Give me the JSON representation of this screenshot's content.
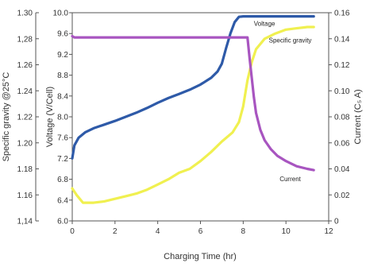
{
  "chart_data": {
    "type": "line",
    "xlabel": "Charging Time (hr)",
    "xlim": [
      0,
      12
    ],
    "x_ticks": [
      0,
      2,
      4,
      6,
      8,
      10,
      12
    ],
    "grid": false,
    "axes": {
      "specific_gravity": {
        "label": "Specific gravity @25°C",
        "position": "left-outer",
        "range": [
          1.14,
          1.3
        ],
        "ticks": [
          "1,14",
          "1.16",
          "1.18",
          "1.20",
          "1.22",
          "1.24",
          "1.26",
          "1,28",
          "1.30"
        ]
      },
      "voltage": {
        "label": "Voltage (V/Cell)",
        "position": "left-inner",
        "range": [
          6.0,
          10.0
        ],
        "ticks": [
          "6.0",
          "6.4",
          "6.8",
          "7.2",
          "7.6",
          "8.0",
          "8.4",
          "8.8",
          "9.2",
          "9.6",
          "10.0"
        ]
      },
      "current": {
        "label": "Current (C₅ A)",
        "position": "right",
        "range": [
          0,
          0.16
        ],
        "ticks": [
          "0",
          "0.02",
          "0.04",
          "0.06",
          "0.08",
          "0.10",
          "0.12",
          "0.14",
          "0.16"
        ]
      }
    },
    "series": [
      {
        "name": "Voltage",
        "axis": "voltage",
        "color": "#2e5aa8",
        "x": [
          0,
          0.1,
          0.3,
          0.6,
          1,
          1.5,
          2,
          2.5,
          3,
          3.5,
          4,
          4.5,
          5,
          5.5,
          6,
          6.5,
          6.8,
          7,
          7.2,
          7.4,
          7.6,
          7.8,
          8,
          9,
          10,
          11.3
        ],
        "y": [
          7.2,
          7.45,
          7.6,
          7.7,
          7.78,
          7.85,
          7.92,
          8.0,
          8.08,
          8.17,
          8.27,
          8.36,
          8.44,
          8.52,
          8.62,
          8.75,
          8.87,
          9.02,
          9.32,
          9.6,
          9.82,
          9.92,
          9.93,
          9.93,
          9.93,
          9.93
        ]
      },
      {
        "name": "Specific gravity",
        "axis": "specific_gravity",
        "color": "#f0f050",
        "x": [
          0,
          0.2,
          0.5,
          1,
          1.5,
          2,
          2.5,
          3,
          3.5,
          4,
          4.5,
          5,
          5.5,
          6,
          6.5,
          7,
          7.5,
          7.8,
          8,
          8.2,
          8.4,
          8.6,
          9,
          9.5,
          10,
          10.5,
          11,
          11.3
        ],
        "y": [
          1.165,
          1.16,
          1.154,
          1.154,
          1.155,
          1.157,
          1.159,
          1.161,
          1.164,
          1.168,
          1.172,
          1.177,
          1.18,
          1.186,
          1.193,
          1.201,
          1.208,
          1.216,
          1.228,
          1.248,
          1.262,
          1.272,
          1.28,
          1.284,
          1.287,
          1.288,
          1.289,
          1.289
        ]
      },
      {
        "name": "Current",
        "axis": "current",
        "color": "#a855c0",
        "x": [
          0,
          0.1,
          1,
          3,
          5,
          7,
          8,
          8.2,
          8.3,
          8.4,
          8.5,
          8.6,
          8.8,
          9,
          9.3,
          9.6,
          10,
          10.5,
          11,
          11.3
        ],
        "y": [
          0.142,
          0.141,
          0.141,
          0.141,
          0.141,
          0.141,
          0.141,
          0.141,
          0.125,
          0.11,
          0.095,
          0.083,
          0.07,
          0.062,
          0.055,
          0.05,
          0.046,
          0.042,
          0.04,
          0.039
        ]
      }
    ]
  }
}
